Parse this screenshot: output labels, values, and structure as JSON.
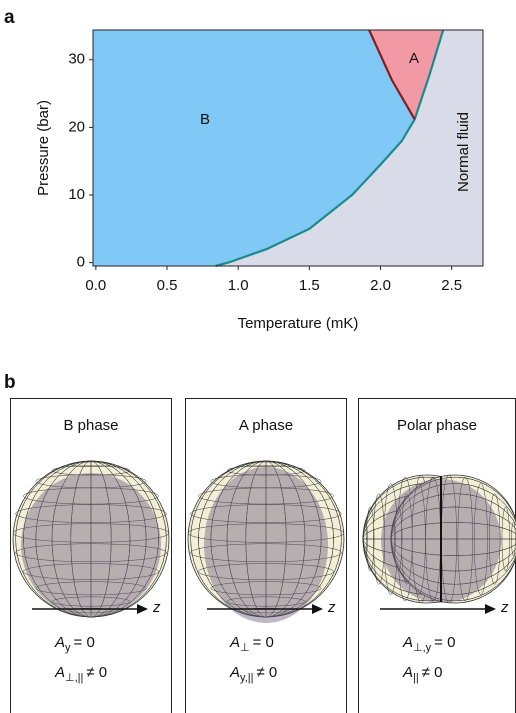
{
  "panel_labels": [
    "a",
    "b"
  ],
  "chart_data": {
    "type": "area",
    "xlabel": "Temperature (mK)",
    "ylabel": "Pressure (bar)",
    "xlim": [
      -0.02,
      2.72
    ],
    "ylim": [
      -0.5,
      34.4
    ],
    "xticks": [
      {
        "value": 0,
        "label": "0.0"
      },
      0.5,
      {
        "value": 1,
        "label": "1.0"
      },
      1.5,
      {
        "value": 2,
        "label": "2.0"
      },
      2.5
    ],
    "yticks": [
      0,
      10,
      20,
      30
    ],
    "background_color": "#d9dbe8",
    "annotations": [
      "B",
      "A",
      "Normal fluid"
    ],
    "region_colors": [
      "#80c8f6",
      "#f19aa5"
    ],
    "series": [
      {
        "color": "#1a8a8a",
        "x": [
          0.84,
          0.93,
          1.2,
          1.5,
          1.8,
          2.0,
          2.15,
          2.24
        ],
        "y": [
          -0.5,
          0,
          2,
          5,
          10,
          14.5,
          18,
          21.2
        ]
      },
      {
        "color": "#1a8a8a",
        "x": [
          2.24,
          2.34,
          2.44
        ],
        "y": [
          21.2,
          27.5,
          34.4
        ]
      },
      {
        "color": "#8b1a1a",
        "x": [
          2.24,
          2.08,
          1.92
        ],
        "y": [
          21.2,
          27,
          34.4
        ]
      }
    ]
  },
  "phases": [
    {
      "title": "B phase",
      "axis_label": "z",
      "equations": [
        {
          "symbol": "A",
          "sub": "y",
          "relation": "= 0"
        },
        {
          "symbol": "A",
          "sub": "⊥,||",
          "relation": "≠ 0"
        }
      ]
    },
    {
      "title": "A phase",
      "axis_label": "z",
      "equations": [
        {
          "symbol": "A",
          "sub": "⊥",
          "relation": "= 0"
        },
        {
          "symbol": "A",
          "sub": "y,||",
          "relation": "≠ 0"
        }
      ]
    },
    {
      "title": "Polar phase",
      "axis_label": "z",
      "equations": [
        {
          "symbol": "A",
          "sub": "⊥,y",
          "relation": "= 0"
        },
        {
          "symbol": "A",
          "sub": "||",
          "relation": "≠ 0"
        }
      ]
    }
  ]
}
